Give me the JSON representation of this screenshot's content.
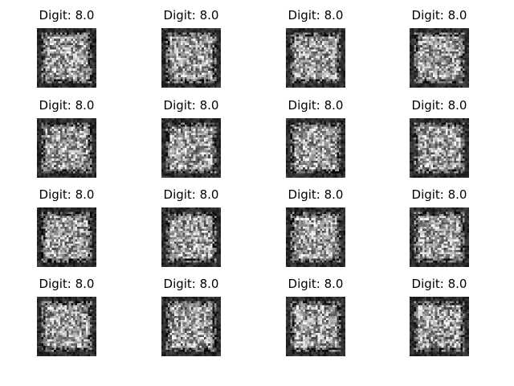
{
  "chart_data": {
    "type": "heatmap",
    "description_kind": "image_grid",
    "rows": 4,
    "cols": 4,
    "colormap": "gray",
    "image_size": [
      28,
      28
    ],
    "background_color": "#ffffff",
    "panels": [
      {
        "title": "Digit: 8.0"
      },
      {
        "title": "Digit: 8.0"
      },
      {
        "title": "Digit: 8.0"
      },
      {
        "title": "Digit: 8.0"
      },
      {
        "title": "Digit: 8.0"
      },
      {
        "title": "Digit: 8.0"
      },
      {
        "title": "Digit: 8.0"
      },
      {
        "title": "Digit: 8.0"
      },
      {
        "title": "Digit: 8.0"
      },
      {
        "title": "Digit: 8.0"
      },
      {
        "title": "Digit: 8.0"
      },
      {
        "title": "Digit: 8.0"
      },
      {
        "title": "Digit: 8.0"
      },
      {
        "title": "Digit: 8.0"
      },
      {
        "title": "Digit: 8.0"
      },
      {
        "title": "Digit: 8.0"
      }
    ]
  }
}
